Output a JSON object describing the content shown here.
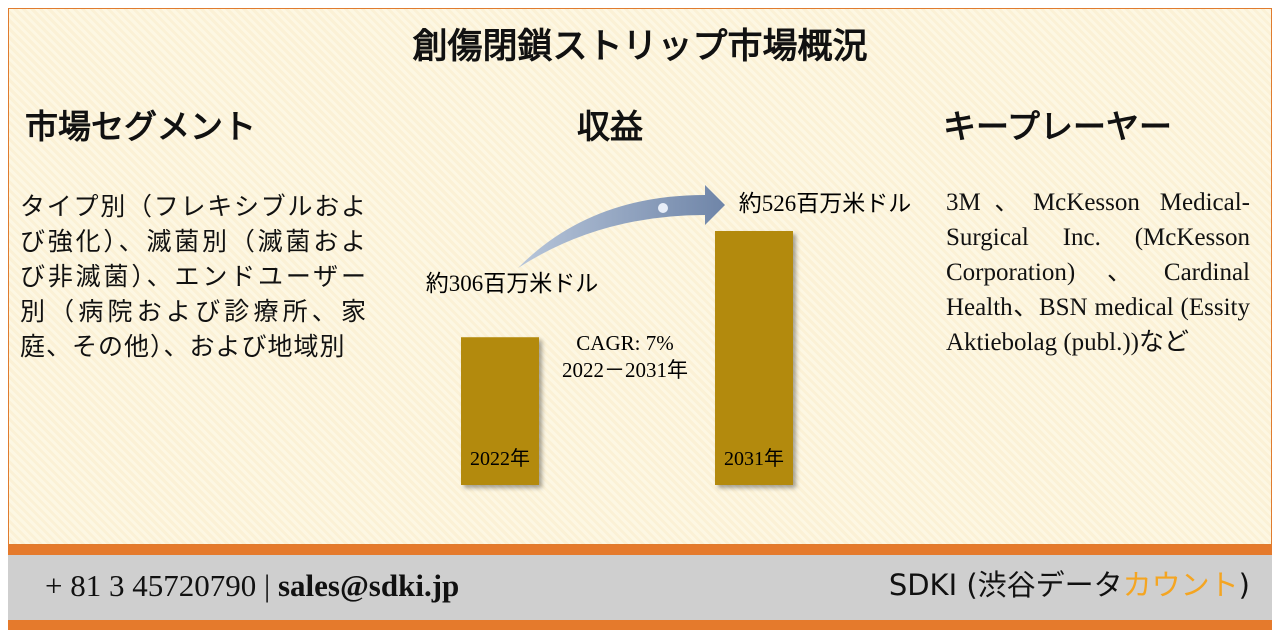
{
  "header": {
    "title": "創傷閉鎖ストリップ市場概況"
  },
  "segments": {
    "heading": "市場セグメント",
    "text": "タイプ別（フレキシブルおよび強化）、滅菌別（滅菌および非滅菌）、エンドユーザー別（病院および診療所、家庭、その他）、および地域別"
  },
  "revenue": {
    "heading": "収益",
    "categories": [
      "2022年",
      "2031年"
    ],
    "values": [
      306,
      526
    ],
    "value_labels": [
      "約306百万米ドル",
      "約526百万米ドル"
    ],
    "color": "#b38a0a",
    "cagr": "CAGR: 7%",
    "period": "2022－2031年"
  },
  "players": {
    "heading": "キープレーヤー",
    "text": "3M、McKesson Medical-Surgical Inc. (McKesson Corporation)、Cardinal Health、BSN medical (Essity Aktiebolag (publ.))など"
  },
  "footer": {
    "phone": "+ 81 3 45720790",
    "separator": "|",
    "email": "sales@sdki.jp",
    "brand": "SDKI (渋谷データ",
    "brand_highlight": "カウント",
    "brand_close": ")"
  }
}
